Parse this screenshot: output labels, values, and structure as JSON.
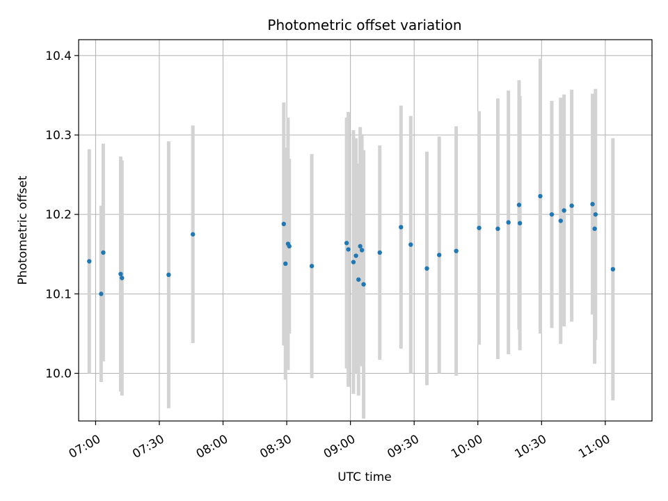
{
  "chart_data": {
    "type": "scatter",
    "title": "Photometric offset variation",
    "xlabel": "UTC time",
    "ylabel": "Photometric offset",
    "x_unit": "UTC time (HH:MM)",
    "xlim": [
      "06:52",
      "11:22"
    ],
    "ylim": [
      9.94,
      10.42
    ],
    "x_ticks": [
      "07:00",
      "07:30",
      "08:00",
      "08:30",
      "09:00",
      "09:30",
      "10:00",
      "10:30",
      "11:00"
    ],
    "y_ticks": [
      10.0,
      10.1,
      10.2,
      10.3,
      10.4
    ],
    "y_tick_labels": [
      "10.0",
      "10.1",
      "10.2",
      "10.3",
      "10.4"
    ],
    "grid": true,
    "colors": {
      "point": "#1f77b4",
      "errorbar": "#d3d3d3",
      "grid": "#b0b0b0"
    },
    "points": [
      {
        "time": "06:57:00",
        "y": 10.141,
        "yerr": 0.141
      },
      {
        "time": "07:02:36",
        "y": 10.1,
        "yerr": 0.111
      },
      {
        "time": "07:03:36",
        "y": 10.152,
        "yerr": 0.137
      },
      {
        "time": "07:11:48",
        "y": 10.125,
        "yerr": 0.148
      },
      {
        "time": "07:12:24",
        "y": 10.12,
        "yerr": 0.148
      },
      {
        "time": "07:34:24",
        "y": 10.124,
        "yerr": 0.168
      },
      {
        "time": "07:45:48",
        "y": 10.175,
        "yerr": 0.137
      },
      {
        "time": "08:28:36",
        "y": 10.188,
        "yerr": 0.153
      },
      {
        "time": "08:29:24",
        "y": 10.138,
        "yerr": 0.146
      },
      {
        "time": "08:30:36",
        "y": 10.163,
        "yerr": 0.159
      },
      {
        "time": "08:31:12",
        "y": 10.16,
        "yerr": 0.11
      },
      {
        "time": "08:41:48",
        "y": 10.135,
        "yerr": 0.141
      },
      {
        "time": "08:58:12",
        "y": 10.164,
        "yerr": 0.158
      },
      {
        "time": "08:59:00",
        "y": 10.156,
        "yerr": 0.173
      },
      {
        "time": "09:01:24",
        "y": 10.14,
        "yerr": 0.166
      },
      {
        "time": "09:02:36",
        "y": 10.148,
        "yerr": 0.148
      },
      {
        "time": "09:03:48",
        "y": 10.118,
        "yerr": 0.146
      },
      {
        "time": "09:04:36",
        "y": 10.16,
        "yerr": 0.15
      },
      {
        "time": "09:05:24",
        "y": 10.155,
        "yerr": 0.146
      },
      {
        "time": "09:06:12",
        "y": 10.112,
        "yerr": 0.169
      },
      {
        "time": "09:13:48",
        "y": 10.152,
        "yerr": 0.135
      },
      {
        "time": "09:23:48",
        "y": 10.184,
        "yerr": 0.153
      },
      {
        "time": "09:28:24",
        "y": 10.162,
        "yerr": 0.162
      },
      {
        "time": "09:36:00",
        "y": 10.132,
        "yerr": 0.147
      },
      {
        "time": "09:41:48",
        "y": 10.149,
        "yerr": 0.149
      },
      {
        "time": "09:49:48",
        "y": 10.154,
        "yerr": 0.157
      },
      {
        "time": "10:00:36",
        "y": 10.183,
        "yerr": 0.147
      },
      {
        "time": "10:09:24",
        "y": 10.182,
        "yerr": 0.164
      },
      {
        "time": "10:14:24",
        "y": 10.19,
        "yerr": 0.166
      },
      {
        "time": "10:19:24",
        "y": 10.212,
        "yerr": 0.157
      },
      {
        "time": "10:19:48",
        "y": 10.189,
        "yerr": 0.16
      },
      {
        "time": "10:29:24",
        "y": 10.223,
        "yerr": 0.173
      },
      {
        "time": "10:34:48",
        "y": 10.2,
        "yerr": 0.143
      },
      {
        "time": "10:39:00",
        "y": 10.192,
        "yerr": 0.155
      },
      {
        "time": "10:40:36",
        "y": 10.205,
        "yerr": 0.146
      },
      {
        "time": "10:44:12",
        "y": 10.211,
        "yerr": 0.146
      },
      {
        "time": "10:54:00",
        "y": 10.213,
        "yerr": 0.139
      },
      {
        "time": "10:55:00",
        "y": 10.182,
        "yerr": 0.17
      },
      {
        "time": "10:55:24",
        "y": 10.2,
        "yerr": 0.158
      },
      {
        "time": "11:03:36",
        "y": 10.131,
        "yerr": 0.165
      }
    ]
  }
}
